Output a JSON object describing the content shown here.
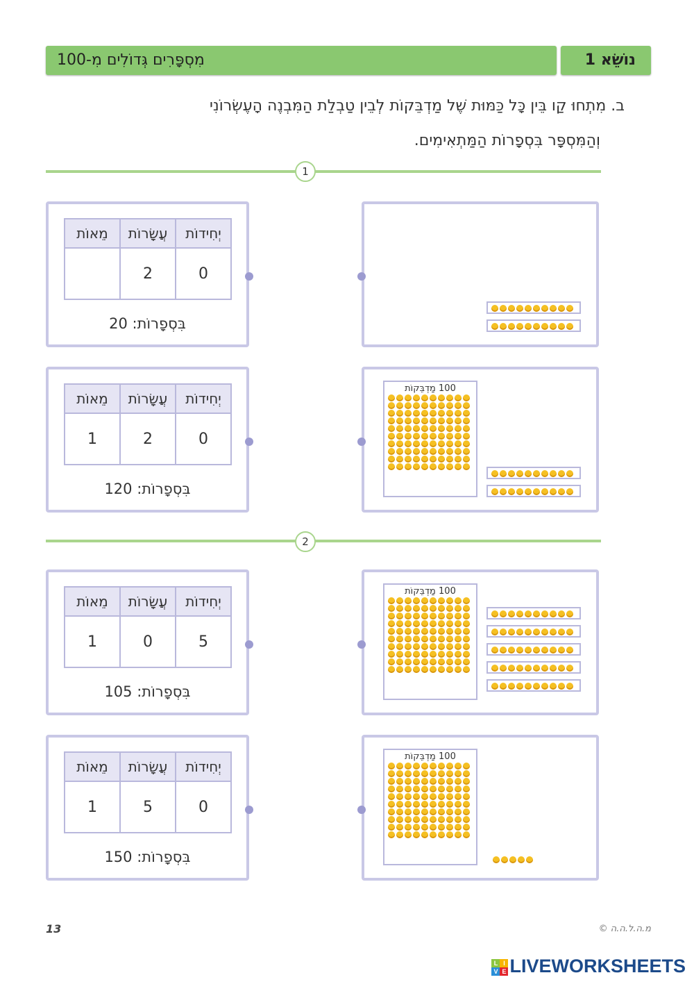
{
  "header": {
    "topic_label": "נוֹשֵׂא 1",
    "title": "מִסְפָּרִים גְּדוֹלִים מִ-100"
  },
  "instruction": {
    "line1": "ב.  מִתְחוּ קַו בֵּין כָּל כַּמּוּת שֶׁל מַדְבֵּקוֹת לְבֵין טַבְלַת הַמִּבְנֶה הָעֶשְׂרוֹנִי",
    "line2": "וְהַמִּסְפָּר בִּסְפָרוֹת הַמַּתְאִימִים."
  },
  "sections": [
    "1",
    "2"
  ],
  "table_headers": {
    "units": "יְחִידוֹת",
    "tens": "עֲשָׂרוֹת",
    "hundreds": "מֵאוֹת"
  },
  "left_cards": [
    {
      "hundreds": "",
      "tens": "2",
      "units": "0",
      "text": "בִּסְפָרוֹת: 20"
    },
    {
      "hundreds": "1",
      "tens": "2",
      "units": "0",
      "text": "בִּסְפָרוֹת: 120"
    },
    {
      "hundreds": "1",
      "tens": "0",
      "units": "5",
      "text": "בִּסְפָרוֹת: 105"
    },
    {
      "hundreds": "1",
      "tens": "5",
      "units": "0",
      "text": "בִּסְפָרוֹת: 150"
    }
  ],
  "grid_label": "100 מַדְבֵּקוֹת",
  "right_cards": [
    {
      "hundred_blocks": 0,
      "strips": 2,
      "singles": 0
    },
    {
      "hundred_blocks": 1,
      "strips": 2,
      "singles": 0
    },
    {
      "hundred_blocks": 1,
      "strips": 5,
      "singles": 0
    },
    {
      "hundred_blocks": 1,
      "strips": 0,
      "singles": 5
    }
  ],
  "footer": {
    "page_number": "13",
    "copyright": "© מ.ה.ל.ה.ה",
    "brand": "LIVEWORKSHEETS"
  },
  "colors": {
    "header_green": "#8ac870",
    "card_border": "#c9c8e6",
    "dot": "#9c9bd0",
    "sticker": "#f5c023"
  }
}
